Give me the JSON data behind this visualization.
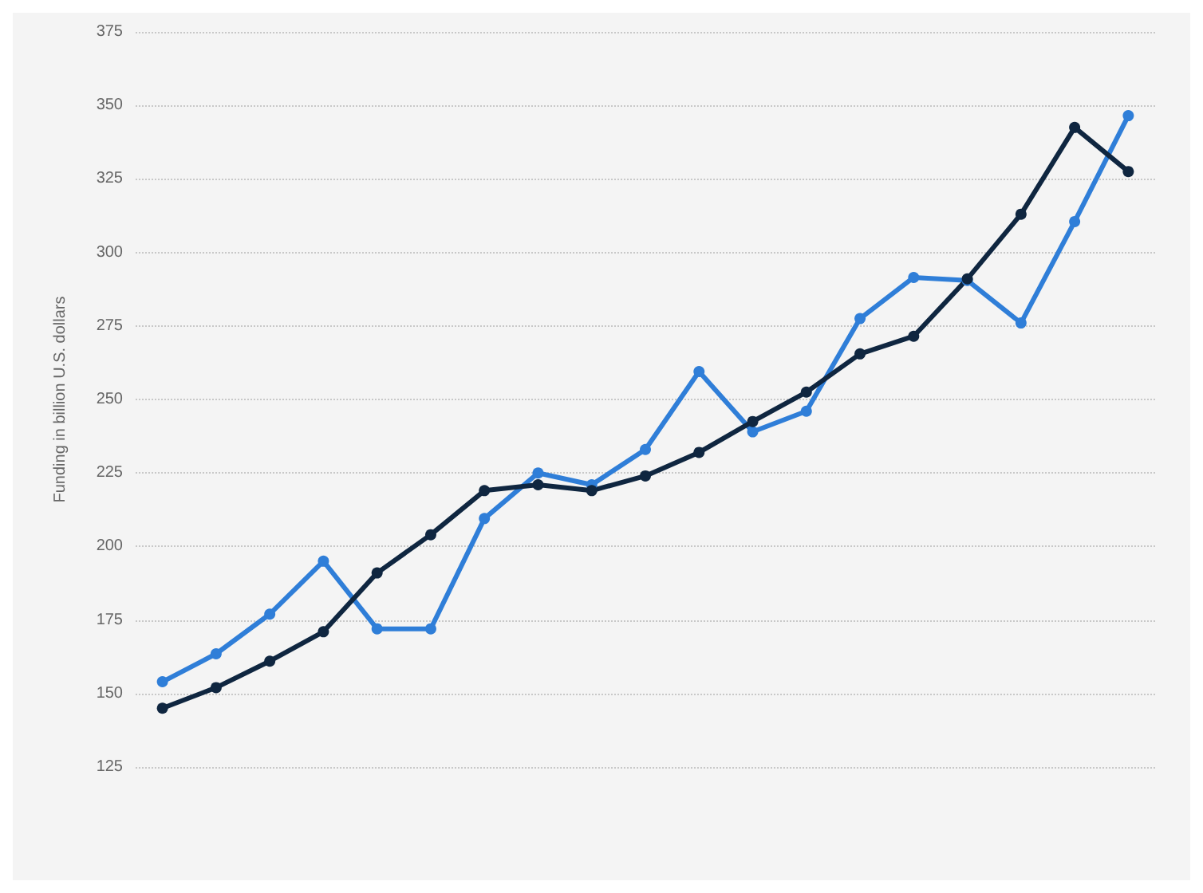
{
  "chart_data": {
    "type": "line",
    "ylabel": "Funding in billion U.S. dollars",
    "categories": [
      null,
      null,
      null,
      null,
      null,
      null,
      null,
      null,
      null,
      null,
      null,
      null,
      null,
      null,
      null,
      null,
      null,
      null,
      null
    ],
    "series": [
      {
        "color": "#2f7ed8",
        "values": [
          154,
          163.5,
          177,
          195,
          172,
          172,
          209.5,
          225,
          221,
          233,
          259.5,
          239,
          246,
          277.5,
          291.5,
          290.5,
          276,
          310.5,
          346.5
        ]
      },
      {
        "color": "#0f2640",
        "values": [
          145,
          152,
          161,
          171,
          191,
          204,
          219,
          221,
          219,
          224,
          232,
          242.5,
          252.5,
          265.5,
          271.5,
          291,
          313,
          342.5,
          327.5
        ]
      }
    ],
    "ylim": [
      125,
      375
    ],
    "yticks": [
      125,
      150,
      175,
      200,
      225,
      250,
      275,
      300,
      325,
      350,
      375
    ],
    "grid": "y",
    "marker": "circle",
    "line_style": "solid"
  }
}
